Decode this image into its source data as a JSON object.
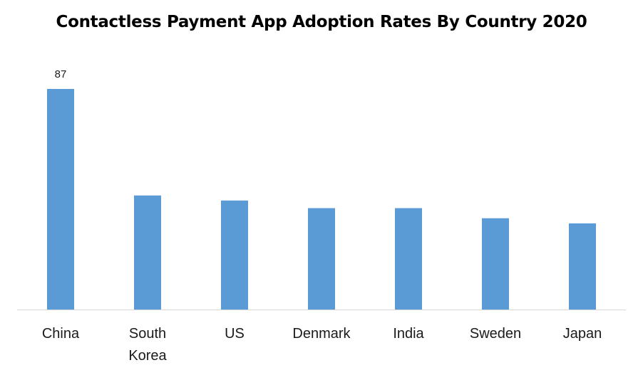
{
  "chart_data": {
    "type": "bar",
    "title": "Contactless Payment App Adoption Rates By Country 2020",
    "categories": [
      "China",
      "South Korea",
      "US",
      "Denmark",
      "India",
      "Sweden",
      "Japan"
    ],
    "category_lines": [
      [
        "China"
      ],
      [
        "South",
        "Korea"
      ],
      [
        "US"
      ],
      [
        "Denmark"
      ],
      [
        "India"
      ],
      [
        "Sweden"
      ],
      [
        "Japan"
      ]
    ],
    "values": [
      87,
      45,
      43,
      40,
      40,
      36,
      34
    ],
    "data_labels": {
      "China": "87"
    },
    "xlabel": "",
    "ylabel": "",
    "ylim": [
      0,
      100
    ],
    "grid": false,
    "legend": "none",
    "bar_color": "#5b9bd5",
    "axis_color": "#d9d9d9"
  }
}
